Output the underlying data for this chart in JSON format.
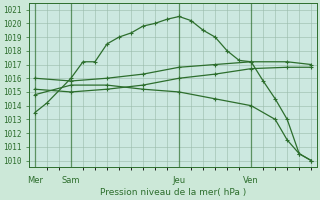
{
  "title": "Pression niveau de la mer( hPa )",
  "bg_color": "#cce8d8",
  "plot_bg": "#cce8e0",
  "grid_color": "#99bbaa",
  "line_color": "#2d6e2d",
  "ylim": [
    1009.5,
    1021.5
  ],
  "yticks": [
    1010,
    1011,
    1012,
    1013,
    1014,
    1015,
    1016,
    1017,
    1018,
    1019,
    1020,
    1021
  ],
  "day_labels": [
    "Mer",
    "Sam",
    "Jeu",
    "Ven"
  ],
  "day_positions": [
    0,
    6,
    24,
    36
  ],
  "xlim": [
    -1,
    47
  ],
  "series": [
    {
      "x": [
        0,
        2,
        6,
        8,
        10,
        12,
        14,
        16,
        18,
        20,
        22,
        24,
        26,
        28,
        30,
        32,
        34,
        36,
        38,
        40,
        42,
        44,
        46
      ],
      "y": [
        1013.5,
        1014.2,
        1016.0,
        1017.2,
        1017.2,
        1018.5,
        1019.0,
        1019.3,
        1019.8,
        1020.0,
        1020.3,
        1020.5,
        1020.2,
        1019.5,
        1019.0,
        1018.0,
        1017.3,
        1017.2,
        1015.8,
        1014.5,
        1013.0,
        1010.5,
        1010.0
      ]
    },
    {
      "x": [
        0,
        6,
        12,
        18,
        24,
        30,
        36,
        42,
        46
      ],
      "y": [
        1016.0,
        1015.8,
        1016.0,
        1016.3,
        1016.8,
        1017.0,
        1017.2,
        1017.2,
        1017.0
      ]
    },
    {
      "x": [
        0,
        6,
        12,
        18,
        24,
        30,
        36,
        42,
        46
      ],
      "y": [
        1015.2,
        1015.0,
        1015.2,
        1015.5,
        1016.0,
        1016.3,
        1016.7,
        1016.8,
        1016.8
      ]
    },
    {
      "x": [
        0,
        6,
        12,
        18,
        24,
        30,
        36,
        40,
        42,
        44,
        46
      ],
      "y": [
        1014.8,
        1015.5,
        1015.5,
        1015.2,
        1015.0,
        1014.5,
        1014.0,
        1013.0,
        1011.5,
        1010.5,
        1010.0
      ]
    }
  ]
}
